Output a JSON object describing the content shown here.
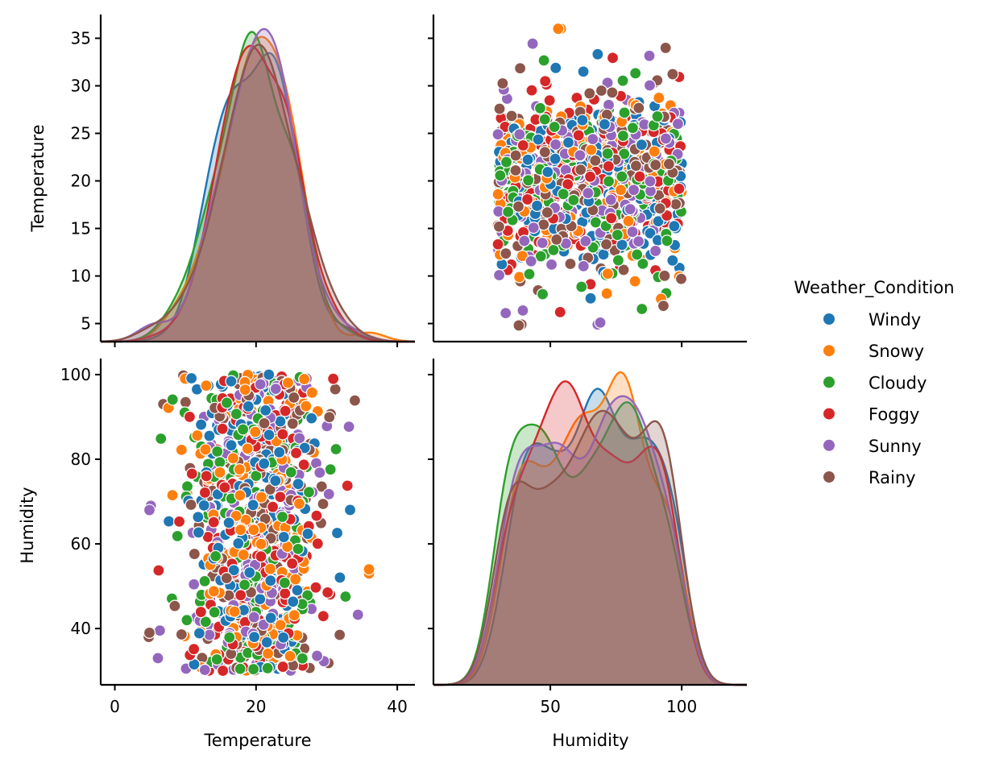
{
  "chart_data": {
    "type": "scatter",
    "kind": "pairplot",
    "hue_variable": "Weather_Condition",
    "variables": [
      "Temperature",
      "Humidity"
    ],
    "legend": {
      "title": "Weather_Condition",
      "placement": "right",
      "entries": [
        {
          "label": "Windy",
          "color": "#1f77b4"
        },
        {
          "label": "Snowy",
          "color": "#ff7f0e"
        },
        {
          "label": "Cloudy",
          "color": "#2ca02c"
        },
        {
          "label": "Foggy",
          "color": "#d62728"
        },
        {
          "label": "Sunny",
          "color": "#9467bd"
        },
        {
          "label": "Rainy",
          "color": "#8c564b"
        }
      ]
    },
    "axes": {
      "Temperature": {
        "range": [
          -2,
          42.5
        ],
        "ticks": [
          0,
          20,
          40
        ],
        "tick_labels": [
          "0",
          "20",
          "40"
        ],
        "y_range": [
          3.1,
          37.5
        ],
        "y_ticks": [
          5,
          10,
          15,
          20,
          25,
          30,
          35
        ],
        "y_tick_labels": [
          "5",
          "10",
          "15",
          "20",
          "25",
          "30",
          "35"
        ]
      },
      "Humidity": {
        "range": [
          5.5,
          124.8
        ],
        "ticks": [
          50,
          100
        ],
        "tick_labels": [
          "50",
          "100"
        ],
        "y_range": [
          26.7,
          103.8
        ],
        "y_ticks": [
          40,
          60,
          80,
          100
        ],
        "y_tick_labels": [
          "40",
          "60",
          "80",
          "100"
        ]
      }
    },
    "panels": [
      {
        "row": 0,
        "col": 0,
        "type": "kde",
        "variable": "Temperature",
        "ylabel": "Temperature",
        "xlabel": ""
      },
      {
        "row": 0,
        "col": 1,
        "type": "scatter",
        "x": "Humidity",
        "y": "Temperature",
        "xlabel": "",
        "ylabel": ""
      },
      {
        "row": 1,
        "col": 0,
        "type": "scatter",
        "x": "Temperature",
        "y": "Humidity",
        "xlabel": "Temperature",
        "ylabel": "Humidity"
      },
      {
        "row": 1,
        "col": 1,
        "type": "kde",
        "variable": "Humidity",
        "xlabel": "Humidity",
        "ylabel": ""
      }
    ],
    "notable_points": [
      {
        "panel": "Humidity_vs_Temperature",
        "series": "Snowy",
        "x": 53,
        "y": 36
      },
      {
        "panel": "Humidity_vs_Temperature",
        "series": "Rainy",
        "x": 38,
        "y": 4.8
      },
      {
        "panel": "Humidity_vs_Temperature",
        "series": "Sunny",
        "x": 69,
        "y": 5.1
      },
      {
        "panel": "Humidity_vs_Temperature",
        "series": "Sunny",
        "x": 33,
        "y": 6.1
      },
      {
        "panel": "Temperature_vs_Humidity",
        "series": "Snowy",
        "x": 36,
        "y": 54
      },
      {
        "panel": "Temperature_vs_Humidity",
        "series": "Rainy",
        "x": 4.9,
        "y": 39
      },
      {
        "panel": "Temperature_vs_Humidity",
        "series": "Sunny",
        "x": 4.9,
        "y": 68
      },
      {
        "panel": "Temperature_vs_Humidity",
        "series": "Rainy",
        "x": 9.7,
        "y": 99.8
      }
    ],
    "grid": false,
    "title": ""
  }
}
